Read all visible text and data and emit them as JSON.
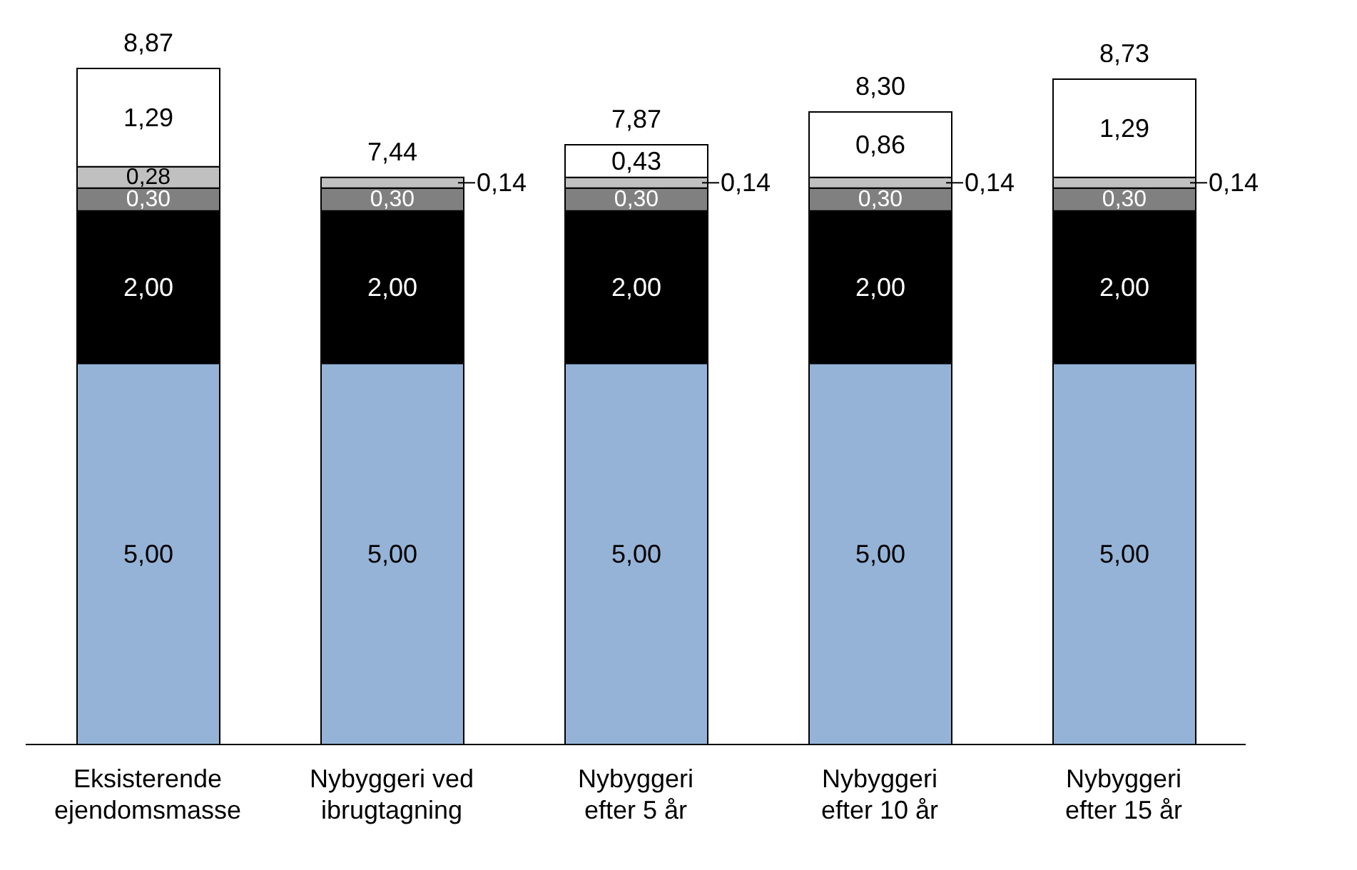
{
  "chart_data": {
    "type": "bar",
    "stacked": true,
    "categories": [
      "Eksisterende ejendomsmasse",
      "Nybyggeri ved ibrugtagning",
      "Nybyggeri efter 5 år",
      "Nybyggeri efter 10 år",
      "Nybyggeri efter 15 år"
    ],
    "series": [
      {
        "color": "#95b3d7",
        "values": [
          5.0,
          5.0,
          5.0,
          5.0,
          5.0
        ],
        "value_labels": [
          "5,00",
          "5,00",
          "5,00",
          "5,00",
          "5,00"
        ]
      },
      {
        "color": "#000000",
        "values": [
          2.0,
          2.0,
          2.0,
          2.0,
          2.0
        ],
        "value_labels": [
          "2,00",
          "2,00",
          "2,00",
          "2,00",
          "2,00"
        ]
      },
      {
        "color": "#808080",
        "values": [
          0.3,
          0.3,
          0.3,
          0.3,
          0.3
        ],
        "value_labels": [
          "0,30",
          "0,30",
          "0,30",
          "0,30",
          "0,30"
        ]
      },
      {
        "color": "#c0c0c0",
        "values": [
          0.28,
          0.14,
          0.14,
          0.14,
          0.14
        ],
        "value_labels": [
          "0,28",
          "0,14",
          "0,14",
          "0,14",
          "0,14"
        ]
      },
      {
        "color": "#ffffff",
        "values": [
          1.29,
          null,
          0.43,
          0.86,
          1.29
        ],
        "value_labels": [
          "1,29",
          null,
          "0,43",
          "0,86",
          "1,29"
        ]
      }
    ],
    "totals": [
      "8,87",
      "7,44",
      "7,87",
      "8,30",
      "8,73"
    ]
  }
}
